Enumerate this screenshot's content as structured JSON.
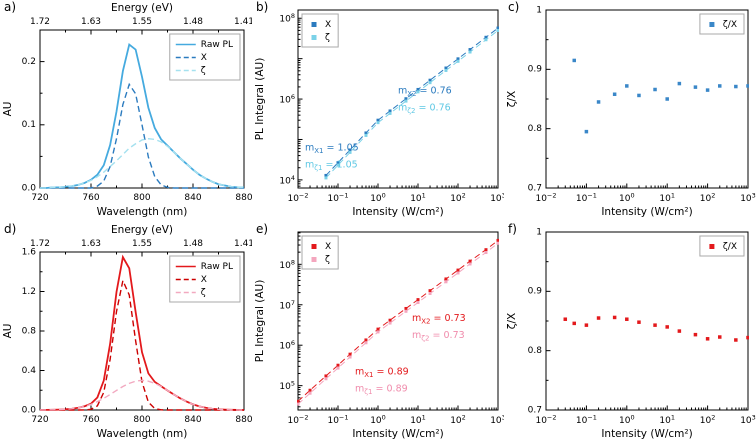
{
  "figure": {
    "description_labels": [
      "a)",
      "b)",
      "c)",
      "d)",
      "e)",
      "f)"
    ]
  },
  "chart_data": [
    {
      "id": "a",
      "label": "a)",
      "type": "line",
      "xlabel": "Wavelength (nm)",
      "ylabel": "AU",
      "top_axis": {
        "title": "Energy (eV)",
        "labels": [
          "1.72",
          "1.63",
          "1.55",
          "1.48",
          "1.41"
        ]
      },
      "xscale": "linear",
      "yscale": "linear",
      "xlim": [
        720,
        880
      ],
      "ylim": [
        0,
        0.25
      ],
      "xticks": [
        720,
        760,
        800,
        840,
        880
      ],
      "xtick_labels": [
        "720",
        "760",
        "800",
        "840",
        "880"
      ],
      "yticks": [
        0,
        0.1,
        0.2
      ],
      "ytick_labels": [
        "0.0",
        "0.1",
        "0.2"
      ],
      "margins": {
        "l": 40,
        "t": 30,
        "r": 8,
        "b": 34
      },
      "legend": {
        "pos": "tr",
        "entries": [
          {
            "label": "Raw PL",
            "color": "#45AADF",
            "sample": "line-solid"
          },
          {
            "label": "X",
            "color": "#2B7BBF",
            "sample": "line-dashed"
          },
          {
            "label": "ζ",
            "color": "#A5E1EF",
            "sample": "line-dashed"
          }
        ]
      },
      "x": [
        720,
        725,
        730,
        735,
        740,
        745,
        750,
        755,
        760,
        765,
        770,
        775,
        780,
        785,
        790,
        795,
        800,
        805,
        810,
        815,
        820,
        825,
        830,
        835,
        840,
        845,
        850,
        855,
        860,
        865,
        870,
        875,
        880
      ],
      "series": [
        {
          "name": "Raw PL",
          "color": "#45AADF",
          "line": "solid",
          "width": 1.8,
          "marker": false,
          "y": [
            0.0,
            0.0,
            0.001,
            0.001,
            0.002,
            0.003,
            0.005,
            0.008,
            0.013,
            0.021,
            0.036,
            0.068,
            0.121,
            0.185,
            0.227,
            0.219,
            0.176,
            0.127,
            0.095,
            0.077,
            0.067,
            0.057,
            0.047,
            0.038,
            0.029,
            0.021,
            0.015,
            0.01,
            0.006,
            0.004,
            0.002,
            0.001,
            0.001
          ]
        },
        {
          "name": "X",
          "color": "#2B7BBF",
          "line": "dashed",
          "width": 1.4,
          "marker": false,
          "y": [
            0,
            0,
            0,
            0,
            0,
            0,
            0,
            0,
            0,
            0.003,
            0.011,
            0.034,
            0.078,
            0.132,
            0.164,
            0.149,
            0.1,
            0.049,
            0.018,
            0.005,
            0.001,
            0,
            0,
            0,
            0,
            0,
            0,
            0,
            0,
            0,
            0,
            0,
            0
          ]
        },
        {
          "name": "ζ",
          "color": "#A5E1EF",
          "line": "dashed",
          "width": 1.4,
          "marker": false,
          "y": [
            0.0,
            0.0,
            0.001,
            0.001,
            0.002,
            0.003,
            0.005,
            0.008,
            0.012,
            0.018,
            0.025,
            0.034,
            0.043,
            0.053,
            0.063,
            0.07,
            0.076,
            0.078,
            0.077,
            0.073,
            0.066,
            0.057,
            0.047,
            0.038,
            0.029,
            0.021,
            0.015,
            0.01,
            0.006,
            0.004,
            0.002,
            0.001,
            0.001
          ]
        }
      ]
    },
    {
      "id": "b",
      "label": "b)",
      "type": "scatter",
      "xlabel": "Intensity (W/cm²)",
      "ylabel": "PL Integral (AU)",
      "xscale": "log",
      "yscale": "log",
      "xlim": [
        0.01,
        1000
      ],
      "ylim": [
        6300,
        160000000
      ],
      "x_labeled": [
        -2,
        -1,
        0,
        1,
        2,
        3
      ],
      "y_labeled": [
        4,
        6,
        8
      ],
      "margins": {
        "l": 46,
        "t": 10,
        "r": 6,
        "b": 34
      },
      "legend": {
        "pos": "tl",
        "entries": [
          {
            "label": "X",
            "color": "#2B7BBF",
            "sample": "marker"
          },
          {
            "label": "ζ",
            "color": "#7BD2E8",
            "sample": "marker"
          }
        ]
      },
      "x": [
        0.05,
        0.1,
        0.2,
        0.5,
        1,
        2,
        5,
        10,
        20,
        50,
        100,
        200,
        500,
        1000
      ],
      "series": [
        {
          "name": "X",
          "color": "#2B7BBF",
          "line": "dashed",
          "width": 1,
          "marker": true,
          "msize": 3,
          "y": [
            12900,
            26700,
            55000,
            145000,
            300000,
            508000,
            1020000,
            1730000,
            2930000,
            5870000,
            9900000,
            16800000,
            33800000,
            57200000
          ]
        },
        {
          "name": "ζ",
          "color": "#7BD2E8",
          "line": "dashed",
          "width": 1,
          "marker": true,
          "msize": 3,
          "y": [
            11200,
            23200,
            47900,
            126000,
            261000,
            442000,
            890000,
            1510000,
            2550000,
            5110000,
            8610000,
            14600000,
            29400000,
            49800000
          ]
        }
      ],
      "annotations": [
        {
          "parts": [
            {
              "t": "m"
            },
            {
              "t": "X2",
              "sub": true
            },
            {
              "t": " = 0.76"
            }
          ],
          "color": "#2B7BBF",
          "fx": 0.5,
          "fy": 0.47
        },
        {
          "parts": [
            {
              "t": "m"
            },
            {
              "t": "ζ2",
              "sub": true
            },
            {
              "t": " = 0.76"
            }
          ],
          "color": "#5FC8E4",
          "fx": 0.5,
          "fy": 0.565
        },
        {
          "parts": [
            {
              "t": "m"
            },
            {
              "t": "X1",
              "sub": true
            },
            {
              "t": " = 1.05"
            }
          ],
          "color": "#2B7BBF",
          "fx": 0.035,
          "fy": 0.79
        },
        {
          "parts": [
            {
              "t": "m"
            },
            {
              "t": "ζ1",
              "sub": true
            },
            {
              "t": " = 1.05"
            }
          ],
          "color": "#5FC8E4",
          "fx": 0.035,
          "fy": 0.885
        }
      ],
      "slopes": {
        "m_X1": 1.05,
        "m_z1": 1.05,
        "m_X2": 0.76,
        "m_z2": 0.76
      }
    },
    {
      "id": "c",
      "label": "c)",
      "type": "scatter",
      "xlabel": "Intensity (W/cm²)",
      "ylabel": "ζ/X",
      "xscale": "log",
      "yscale": "linear",
      "xlim": [
        0.01,
        1000
      ],
      "ylim": [
        0.7,
        1.0
      ],
      "x_labeled": [
        -2,
        -1,
        0,
        1,
        2,
        3
      ],
      "yticks": [
        0.7,
        0.8,
        0.9,
        1.0
      ],
      "ytick_labels": [
        "0.7",
        "0.8",
        "0.9",
        "1"
      ],
      "margins": {
        "l": 42,
        "t": 10,
        "r": 8,
        "b": 34
      },
      "legend": {
        "pos": "tr",
        "entries": [
          {
            "label": "ζ/X",
            "color": "#3A87C8",
            "sample": "marker"
          }
        ]
      },
      "x": [
        0.05,
        0.1,
        0.2,
        0.5,
        1,
        2,
        5,
        10,
        20,
        50,
        100,
        200,
        500,
        1000
      ],
      "series": [
        {
          "name": "ζ/X",
          "color": "#3A87C8",
          "line": "none",
          "marker": true,
          "msize": 3.5,
          "y": [
            0.915,
            0.795,
            0.845,
            0.858,
            0.872,
            0.856,
            0.866,
            0.85,
            0.876,
            0.87,
            0.865,
            0.872,
            0.871,
            0.872
          ]
        }
      ]
    },
    {
      "id": "d",
      "label": "d)",
      "type": "line",
      "xlabel": "Wavelength (nm)",
      "ylabel": "AU",
      "top_axis": {
        "title": "Energy (eV)",
        "labels": [
          "1.72",
          "1.63",
          "1.55",
          "1.48",
          "1.41"
        ]
      },
      "xscale": "linear",
      "yscale": "linear",
      "xlim": [
        720,
        880
      ],
      "ylim": [
        0,
        1.6
      ],
      "xticks": [
        720,
        760,
        800,
        840,
        880
      ],
      "xtick_labels": [
        "720",
        "760",
        "800",
        "840",
        "880"
      ],
      "yticks": [
        0,
        0.4,
        0.8,
        1.2,
        1.6
      ],
      "ytick_labels": [
        "0.0",
        "0.4",
        "0.8",
        "1.2",
        "1.6"
      ],
      "margins": {
        "l": 40,
        "t": 30,
        "r": 8,
        "b": 34
      },
      "legend": {
        "pos": "tr",
        "entries": [
          {
            "label": "Raw PL",
            "color": "#E3191C",
            "sample": "line-solid"
          },
          {
            "label": "X",
            "color": "#CC0000",
            "sample": "line-dashed"
          },
          {
            "label": "ζ",
            "color": "#F2A9C0",
            "sample": "line-dashed"
          }
        ]
      },
      "x": [
        720,
        725,
        730,
        735,
        740,
        745,
        750,
        755,
        760,
        765,
        770,
        775,
        780,
        785,
        790,
        795,
        800,
        805,
        810,
        815,
        820,
        825,
        830,
        835,
        840,
        845,
        850,
        855,
        860,
        865,
        870,
        875,
        880
      ],
      "series": [
        {
          "name": "Raw PL",
          "color": "#E3191C",
          "line": "solid",
          "width": 1.8,
          "marker": false,
          "y": [
            0.0,
            0.001,
            0.002,
            0.004,
            0.007,
            0.013,
            0.023,
            0.038,
            0.064,
            0.127,
            0.297,
            0.67,
            1.195,
            1.548,
            1.435,
            0.993,
            0.585,
            0.371,
            0.285,
            0.24,
            0.198,
            0.157,
            0.118,
            0.085,
            0.057,
            0.037,
            0.023,
            0.013,
            0.007,
            0.004,
            0.002,
            0.001,
            0.0
          ]
        },
        {
          "name": "X",
          "color": "#CC0000",
          "line": "dashed",
          "width": 1.4,
          "marker": false,
          "y": [
            0,
            0,
            0,
            0,
            0,
            0,
            0,
            0.001,
            0.007,
            0.042,
            0.179,
            0.513,
            0.997,
            1.31,
            1.165,
            0.701,
            0.285,
            0.079,
            0.015,
            0.002,
            0,
            0,
            0,
            0,
            0,
            0,
            0,
            0,
            0,
            0,
            0,
            0,
            0
          ]
        },
        {
          "name": "ζ",
          "color": "#F2A9C0",
          "line": "dashed",
          "width": 1.4,
          "marker": false,
          "y": [
            0.0,
            0.001,
            0.002,
            0.004,
            0.007,
            0.013,
            0.023,
            0.037,
            0.057,
            0.085,
            0.118,
            0.157,
            0.198,
            0.238,
            0.27,
            0.292,
            0.3,
            0.292,
            0.27,
            0.238,
            0.198,
            0.157,
            0.118,
            0.085,
            0.057,
            0.037,
            0.023,
            0.013,
            0.007,
            0.004,
            0.002,
            0.001,
            0.0
          ]
        }
      ]
    },
    {
      "id": "e",
      "label": "e)",
      "type": "scatter",
      "xlabel": "Intensity (W/cm²)",
      "ylabel": "PL Integral (AU)",
      "xscale": "log",
      "yscale": "log",
      "xlim": [
        0.01,
        1000
      ],
      "ylim": [
        25000,
        630000000
      ],
      "x_labeled": [
        -2,
        -1,
        0,
        1,
        2,
        3
      ],
      "y_labeled": [
        5,
        6,
        7,
        8
      ],
      "margins": {
        "l": 46,
        "t": 10,
        "r": 6,
        "b": 34
      },
      "legend": {
        "pos": "tl",
        "entries": [
          {
            "label": "X",
            "color": "#E3191C",
            "sample": "marker"
          },
          {
            "label": "ζ",
            "color": "#F4A6BE",
            "sample": "marker"
          }
        ]
      },
      "x": [
        0.01,
        0.02,
        0.05,
        0.1,
        0.2,
        0.5,
        1,
        2,
        5,
        10,
        20,
        50,
        100,
        200,
        500,
        1000
      ],
      "series": [
        {
          "name": "X",
          "color": "#E3191C",
          "line": "dashed",
          "width": 1,
          "marker": true,
          "msize": 3,
          "y": [
            41000,
            77000,
            174000,
            320000,
            600000,
            1350000,
            2500000,
            4150000,
            8100000,
            13400000,
            22300000,
            43500000,
            72000000,
            120000000,
            230000000,
            390000000
          ]
        },
        {
          "name": "ζ",
          "color": "#F4A6BE",
          "line": "dashed",
          "width": 1,
          "marker": true,
          "msize": 3,
          "y": [
            35000,
            65000,
            148000,
            272000,
            510000,
            1150000,
            2130000,
            3530000,
            6890000,
            11400000,
            19000000,
            37000000,
            61200000,
            102000000,
            196000000,
            332000000
          ]
        }
      ],
      "annotations": [
        {
          "parts": [
            {
              "t": "m"
            },
            {
              "t": "X2",
              "sub": true
            },
            {
              "t": " = 0.73"
            }
          ],
          "color": "#E3191C",
          "fx": 0.57,
          "fy": 0.5
        },
        {
          "parts": [
            {
              "t": "m"
            },
            {
              "t": "ζ2",
              "sub": true
            },
            {
              "t": " = 0.73"
            }
          ],
          "color": "#F08CAC",
          "fx": 0.57,
          "fy": 0.595
        },
        {
          "parts": [
            {
              "t": "m"
            },
            {
              "t": "X1",
              "sub": true
            },
            {
              "t": " = 0.89"
            }
          ],
          "color": "#E3191C",
          "fx": 0.285,
          "fy": 0.8
        },
        {
          "parts": [
            {
              "t": "m"
            },
            {
              "t": "ζ1",
              "sub": true
            },
            {
              "t": " = 0.89"
            }
          ],
          "color": "#F08CAC",
          "fx": 0.285,
          "fy": 0.895
        }
      ],
      "slopes": {
        "m_X1": 0.89,
        "m_z1": 0.89,
        "m_X2": 0.73,
        "m_z2": 0.73
      }
    },
    {
      "id": "f",
      "label": "f)",
      "type": "scatter",
      "xlabel": "Intensity (W/cm²)",
      "ylabel": "ζ/X",
      "xscale": "log",
      "yscale": "linear",
      "xlim": [
        0.01,
        1000
      ],
      "ylim": [
        0.7,
        1.0
      ],
      "x_labeled": [
        -2,
        -1,
        0,
        1,
        2,
        3
      ],
      "yticks": [
        0.7,
        0.8,
        0.9,
        1.0
      ],
      "ytick_labels": [
        "0.7",
        "0.8",
        "0.9",
        "1"
      ],
      "margins": {
        "l": 42,
        "t": 10,
        "r": 8,
        "b": 34
      },
      "legend": {
        "pos": "tr",
        "entries": [
          {
            "label": "ζ/X",
            "color": "#E3191C",
            "sample": "marker"
          }
        ]
      },
      "x": [
        0.03,
        0.05,
        0.1,
        0.2,
        0.5,
        1,
        2,
        5,
        10,
        20,
        50,
        100,
        200,
        500,
        1000
      ],
      "series": [
        {
          "name": "ζ/X",
          "color": "#E3191C",
          "line": "none",
          "marker": true,
          "msize": 3.5,
          "y": [
            0.853,
            0.846,
            0.843,
            0.855,
            0.856,
            0.853,
            0.848,
            0.843,
            0.84,
            0.833,
            0.827,
            0.82,
            0.823,
            0.818,
            0.822
          ]
        }
      ]
    }
  ]
}
